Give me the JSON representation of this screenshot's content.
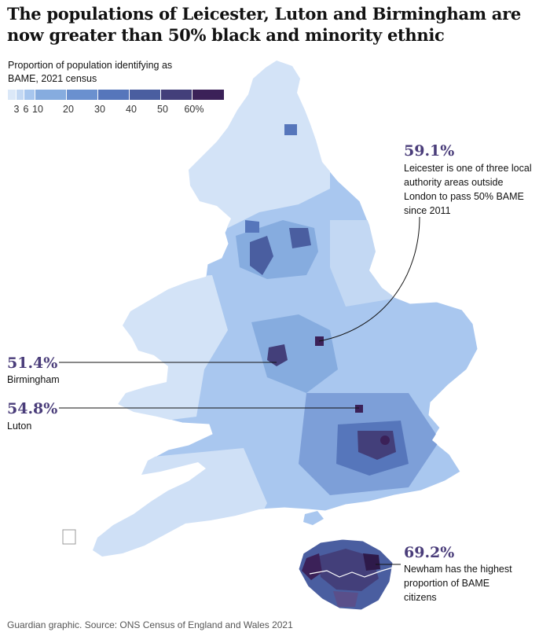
{
  "headline": "The populations of Leicester, Luton and Birmingham are now greater than 50% black and minority ethnic",
  "legend": {
    "title": "Proportion of population identifying as BAME, 2021 census",
    "ticks": [
      "3",
      "6",
      "10",
      "20",
      "30",
      "40",
      "50",
      "60%"
    ],
    "colors": [
      "#dbe8f8",
      "#c3d8f3",
      "#a7c6ee",
      "#86acdf",
      "#6a90cf",
      "#5676bb",
      "#4a5ea0",
      "#433f7a",
      "#3b2158"
    ]
  },
  "callouts": {
    "leicester": {
      "value": "59.1%",
      "text": "Leicester is one of three local authority areas outside London to pass 50% BAME since 2011"
    },
    "birmingham": {
      "value": "51.4%",
      "text": "Birmingham"
    },
    "luton": {
      "value": "54.8%",
      "text": "Luton"
    },
    "newham": {
      "value": "69.2%",
      "text": "Newham has the highest proportion of BAME citizens"
    }
  },
  "source": "Guardian graphic. Source: ONS Census of England and Wales 2021"
}
